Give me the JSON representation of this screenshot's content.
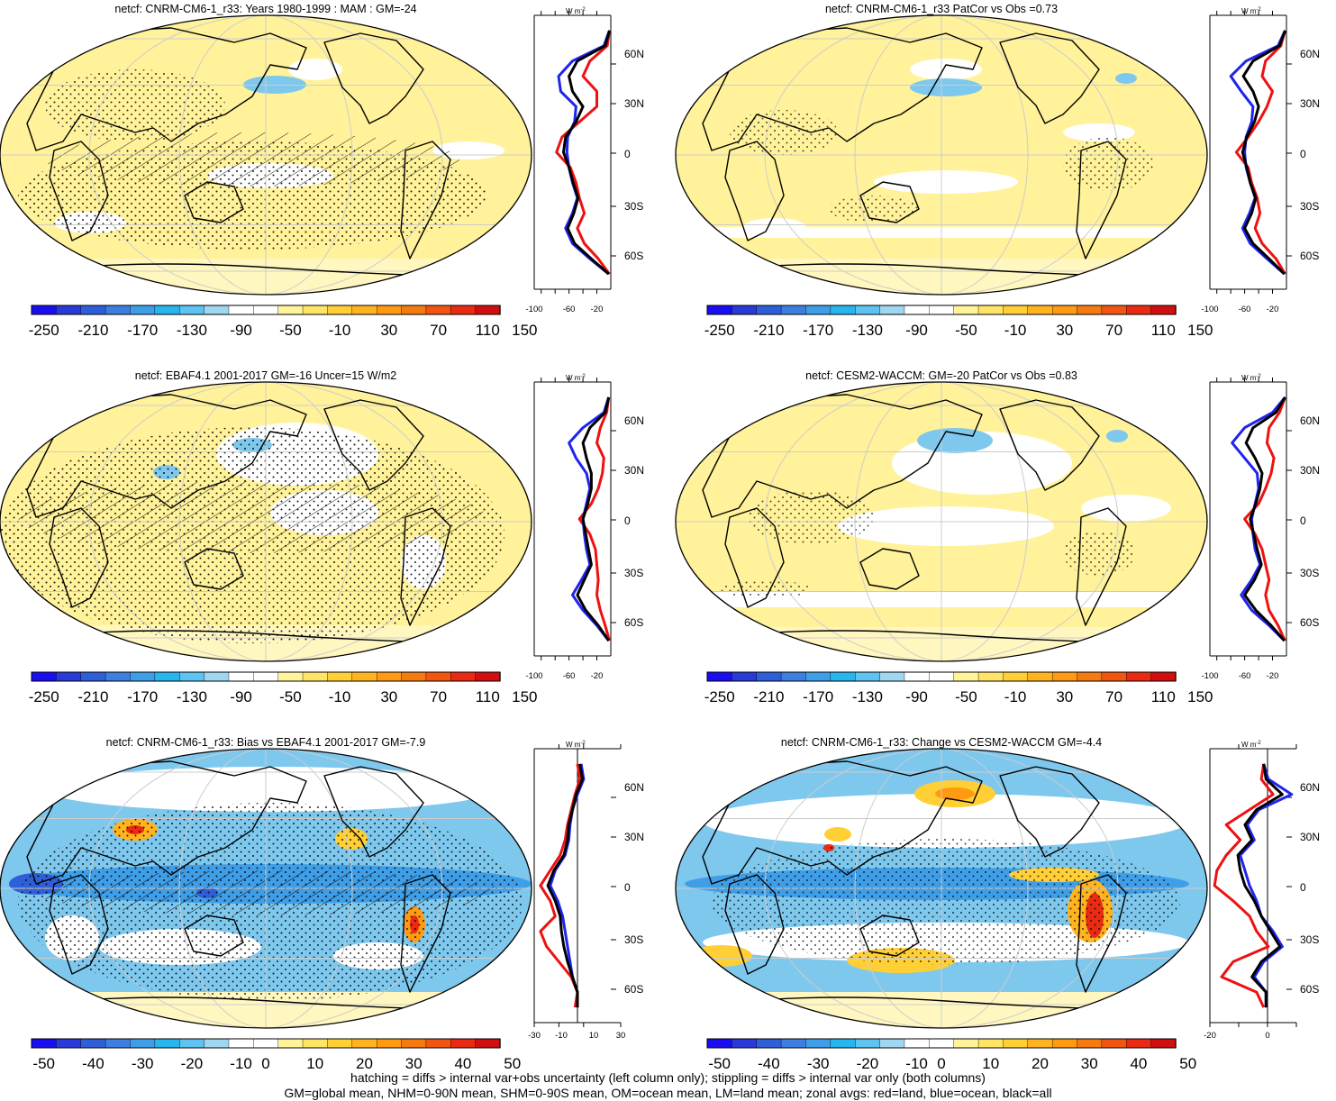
{
  "figure": {
    "footer_lines": [
      "hatching = diffs > internal var+obs uncertainty (left column only); stippling = diffs > internal var only (both columns)",
      "GM=global mean, NHM=0-90N mean, SHM=0-90S mean, OM=ocean mean, LM=land mean; zonal avgs: red=land, blue=ocean, black=all"
    ],
    "zonal_unit_label": "W m",
    "zonal_unit_exp": "-2",
    "lat_tick_labels": [
      "60N",
      "30N",
      "0",
      "30S",
      "60S"
    ],
    "colorbar_colors_full": [
      "#1a0ef0",
      "#2a3ad9",
      "#2f5fd8",
      "#3d7fe0",
      "#3f9ee8",
      "#27b5ee",
      "#5ec3f0",
      "#9fd7f2",
      "#ffffff",
      "#ffffff",
      "#fff49a",
      "#ffe566",
      "#ffcf35",
      "#ffb31f",
      "#ff9a12",
      "#f57a10",
      "#f0560f",
      "#ea2a12",
      "#d10f10"
    ],
    "colorbar_colors_bias": [
      "#1a0ef0",
      "#2a3ad9",
      "#2f5fd8",
      "#3d7fe0",
      "#3f9ee8",
      "#27b5ee",
      "#5ec3f0",
      "#9fd7f2",
      "#ffffff",
      "#ffffff",
      "#fff49a",
      "#ffe566",
      "#ffcf35",
      "#ffb31f",
      "#ff9a12",
      "#f57a10",
      "#f0560f",
      "#ea2a12",
      "#d10f10"
    ],
    "series_colors": {
      "land": "#ee1111",
      "ocean": "#1f24ee",
      "all": "#000000"
    },
    "map_colors": {
      "yellow": "#fff29a",
      "light_yellow": "#fff7bf",
      "blue": "#7ec8ee",
      "mid_blue": "#3f9ee8",
      "deep_blue": "#2f5fd8",
      "orange": "#ffb31f",
      "red": "#ea2a12"
    }
  },
  "panels": [
    {
      "title": "netcf: CNRM-CM6-1_r33: Years 1980-1999 : MAM : GM=-24",
      "colorbar_labels": [
        "-250",
        "-210",
        "-170",
        "-130",
        "-90",
        "-50",
        "-10",
        "30",
        "70",
        "110",
        "150"
      ],
      "zonal_x_labels": [
        "-100",
        "-60",
        "-20"
      ]
    },
    {
      "title": "netcf: CNRM-CM6-1_r33 PatCor vs Obs =0.73",
      "colorbar_labels": [
        "-250",
        "-210",
        "-170",
        "-130",
        "-90",
        "-50",
        "-10",
        "30",
        "70",
        "110",
        "150"
      ],
      "zonal_x_labels": [
        "-100",
        "-60",
        "-20"
      ]
    },
    {
      "title": "netcf: EBAF4.1 2001-2017 GM=-16 Uncer=15 W/m2",
      "colorbar_labels": [
        "-250",
        "-210",
        "-170",
        "-130",
        "-90",
        "-50",
        "-10",
        "30",
        "70",
        "110",
        "150"
      ],
      "zonal_x_labels": [
        "-100",
        "-60",
        "-20"
      ]
    },
    {
      "title": "netcf: CESM2-WACCM: GM=-20 PatCor vs Obs =0.83",
      "colorbar_labels": [
        "-250",
        "-210",
        "-170",
        "-130",
        "-90",
        "-50",
        "-10",
        "30",
        "70",
        "110",
        "150"
      ],
      "zonal_x_labels": [
        "-100",
        "-60",
        "-20"
      ]
    },
    {
      "title": "netcf: CNRM-CM6-1_r33: Bias vs EBAF4.1 2001-2017 GM=-7.9",
      "colorbar_labels": [
        "-50",
        "-40",
        "-30",
        "-20",
        "-10",
        "0",
        "10",
        "20",
        "30",
        "40",
        "50"
      ],
      "zonal_x_labels": [
        "-30",
        "-10",
        "10",
        "30"
      ]
    },
    {
      "title": "netcf: CNRM-CM6-1_r33: Change vs CESM2-WACCM GM=-4.4",
      "colorbar_labels": [
        "-50",
        "-40",
        "-30",
        "-20",
        "-10",
        "0",
        "10",
        "20",
        "30",
        "40",
        "50"
      ],
      "zonal_x_labels": [
        "-20",
        "0"
      ]
    }
  ],
  "chart_data": [
    {
      "type": "line",
      "title": "netcf: CNRM-CM6-1_r33: Years 1980-1999 : MAM : GM=-24",
      "lat": [
        80,
        70,
        60,
        50,
        40,
        30,
        20,
        10,
        0,
        -10,
        -20,
        -30,
        -40,
        -50,
        -60,
        -70,
        -80
      ],
      "xlim": [
        -110,
        0
      ],
      "ylim": [
        -90,
        90
      ],
      "series": [
        {
          "name": "land",
          "values": [
            -2,
            -5,
            -30,
            -40,
            -20,
            -20,
            -45,
            -70,
            -78,
            -58,
            -50,
            -45,
            -38,
            -48,
            -38,
            -18,
            -2
          ]
        },
        {
          "name": "ocean",
          "values": [
            -2,
            -10,
            -55,
            -75,
            -72,
            -50,
            -52,
            -62,
            -63,
            -60,
            -55,
            -48,
            -55,
            -65,
            -55,
            -30,
            -3
          ]
        },
        {
          "name": "all",
          "values": [
            -2,
            -8,
            -48,
            -60,
            -55,
            -40,
            -50,
            -65,
            -68,
            -60,
            -54,
            -47,
            -53,
            -62,
            -52,
            -28,
            -3
          ]
        }
      ]
    },
    {
      "type": "line",
      "title": "netcf: CNRM-CM6-1_r33 PatCor vs Obs =0.73",
      "lat": [
        80,
        70,
        60,
        50,
        40,
        30,
        20,
        10,
        0,
        -10,
        -20,
        -30,
        -40,
        -50,
        -60,
        -70,
        -80
      ],
      "xlim": [
        -110,
        0
      ],
      "ylim": [
        -90,
        90
      ],
      "series": [
        {
          "name": "land",
          "values": [
            -2,
            -8,
            -30,
            -35,
            -20,
            -28,
            -40,
            -55,
            -72,
            -55,
            -50,
            -42,
            -38,
            -45,
            -35,
            -15,
            -2
          ]
        },
        {
          "name": "ocean",
          "values": [
            -2,
            -12,
            -58,
            -80,
            -65,
            -48,
            -50,
            -58,
            -60,
            -58,
            -52,
            -45,
            -53,
            -63,
            -52,
            -28,
            -3
          ]
        },
        {
          "name": "all",
          "values": [
            -2,
            -10,
            -48,
            -62,
            -48,
            -40,
            -46,
            -57,
            -63,
            -57,
            -52,
            -44,
            -50,
            -60,
            -48,
            -25,
            -3
          ]
        }
      ]
    },
    {
      "type": "line",
      "title": "netcf: EBAF4.1 2001-2017 GM=-16 Uncer=15 W/m2",
      "lat": [
        80,
        70,
        60,
        50,
        40,
        30,
        20,
        10,
        0,
        -10,
        -20,
        -30,
        -40,
        -50,
        -60,
        -70,
        -80
      ],
      "xlim": [
        -110,
        0
      ],
      "ylim": [
        -90,
        90
      ],
      "series": [
        {
          "name": "land",
          "values": [
            -3,
            -6,
            -15,
            -20,
            -10,
            -12,
            -18,
            -28,
            -45,
            -30,
            -22,
            -20,
            -18,
            -20,
            -15,
            -8,
            -2
          ]
        },
        {
          "name": "ocean",
          "values": [
            -3,
            -10,
            -40,
            -60,
            -50,
            -35,
            -30,
            -35,
            -40,
            -38,
            -35,
            -30,
            -42,
            -55,
            -40,
            -20,
            -3
          ]
        },
        {
          "name": "all",
          "values": [
            -3,
            -8,
            -30,
            -40,
            -35,
            -28,
            -28,
            -33,
            -40,
            -36,
            -32,
            -28,
            -38,
            -48,
            -36,
            -18,
            -3
          ]
        }
      ]
    },
    {
      "type": "line",
      "title": "netcf: CESM2-WACCM: GM=-20 PatCor vs Obs =0.83",
      "lat": [
        80,
        70,
        60,
        50,
        40,
        30,
        20,
        10,
        0,
        -10,
        -20,
        -30,
        -40,
        -50,
        -60,
        -70,
        -80
      ],
      "xlim": [
        -110,
        0
      ],
      "ylim": [
        -90,
        90
      ],
      "series": [
        {
          "name": "land",
          "values": [
            -2,
            -10,
            -25,
            -28,
            -18,
            -22,
            -30,
            -40,
            -60,
            -45,
            -35,
            -30,
            -25,
            -30,
            -25,
            -12,
            -2
          ]
        },
        {
          "name": "ocean",
          "values": [
            -2,
            -20,
            -60,
            -78,
            -60,
            -42,
            -40,
            -45,
            -50,
            -48,
            -45,
            -38,
            -50,
            -65,
            -50,
            -25,
            -3
          ]
        },
        {
          "name": "all",
          "values": [
            -2,
            -15,
            -48,
            -58,
            -45,
            -35,
            -38,
            -44,
            -52,
            -47,
            -42,
            -36,
            -46,
            -60,
            -44,
            -22,
            -3
          ]
        }
      ]
    },
    {
      "type": "line",
      "title": "netcf: CNRM-CM6-1_r33: Bias vs EBAF4.1 2001-2017 GM=-7.9",
      "lat": [
        80,
        70,
        60,
        50,
        40,
        30,
        20,
        10,
        0,
        -10,
        -20,
        -30,
        -40,
        -50,
        -60,
        -70,
        -80
      ],
      "xlim": [
        -35,
        35
      ],
      "ylim": [
        -90,
        90
      ],
      "series": [
        {
          "name": "land",
          "values": [
            0,
            2,
            -2,
            -5,
            -8,
            -10,
            -14,
            -22,
            -30,
            -22,
            -18,
            -30,
            -25,
            -15,
            -5,
            0,
            -2
          ]
        },
        {
          "name": "ocean",
          "values": [
            3,
            5,
            0,
            -4,
            -6,
            -7,
            -10,
            -18,
            -22,
            -16,
            -12,
            -10,
            -8,
            -6,
            -4,
            0,
            0
          ]
        },
        {
          "name": "all",
          "values": [
            2,
            4,
            -1,
            -4,
            -7,
            -8,
            -11,
            -19,
            -24,
            -18,
            -14,
            -13,
            -11,
            -8,
            -4,
            0,
            0
          ]
        }
      ]
    },
    {
      "type": "line",
      "title": "netcf: CNRM-CM6-1_r33: Change vs CESM2-WACCM GM=-4.4",
      "lat": [
        80,
        70,
        60,
        50,
        40,
        30,
        20,
        10,
        0,
        -10,
        -20,
        -30,
        -40,
        -50,
        -60,
        -70,
        -80
      ],
      "xlim": [
        -25,
        12
      ],
      "ylim": [
        -90,
        90
      ],
      "series": [
        {
          "name": "land",
          "values": [
            -2,
            -3,
            2,
            -8,
            -18,
            -12,
            -18,
            -22,
            -23,
            -15,
            -8,
            -5,
            0,
            -15,
            -20,
            -5,
            -2
          ]
        },
        {
          "name": "ocean",
          "values": [
            -2,
            0,
            10,
            -4,
            -9,
            -6,
            -12,
            -10,
            -8,
            -5,
            -3,
            2,
            6,
            -2,
            -6,
            -1,
            -1
          ]
        },
        {
          "name": "all",
          "values": [
            -2,
            -1,
            6,
            -5,
            -10,
            -7,
            -13,
            -12,
            -10,
            -6,
            -3,
            1,
            5,
            -3,
            -7,
            -1,
            -1
          ]
        }
      ]
    }
  ]
}
